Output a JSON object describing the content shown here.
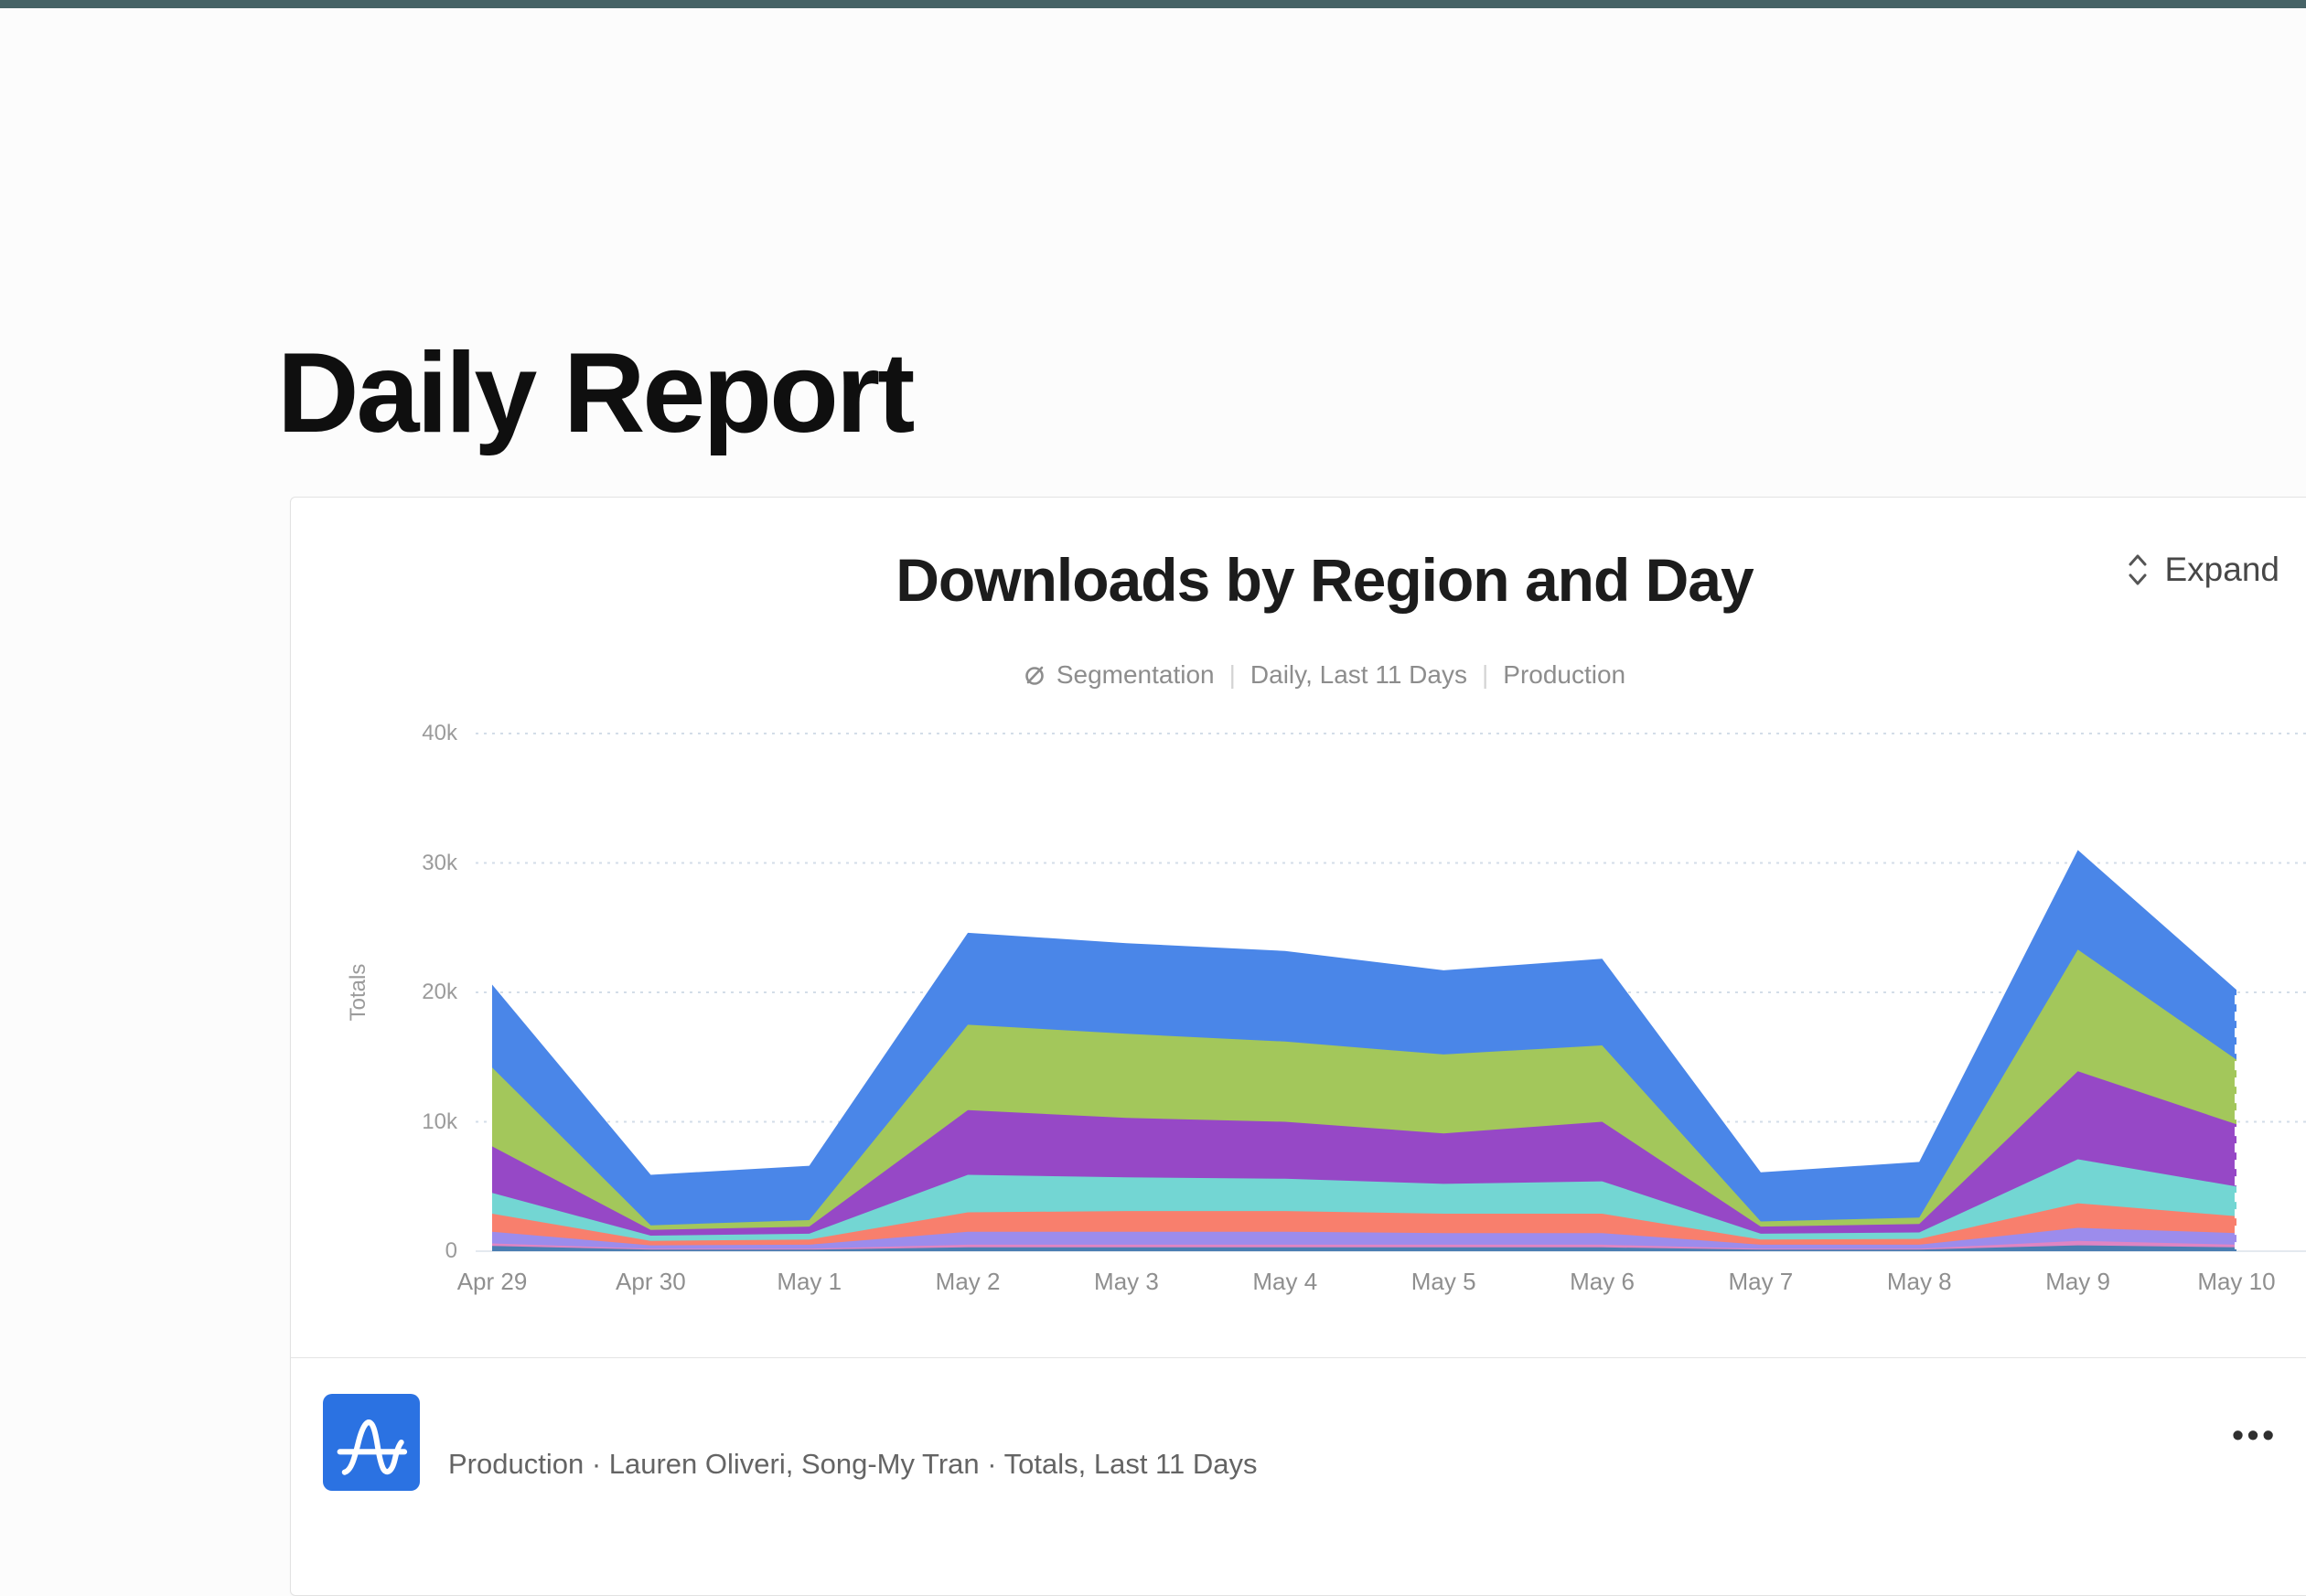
{
  "page": {
    "title": "Daily Report",
    "topbar_color": "#466366",
    "background_color": "#fcfcfc"
  },
  "card": {
    "title": "Downloads by Region and Day",
    "expand_label": "Expand",
    "subtitle": {
      "chart_type_label": "Segmentation",
      "date_range_label": "Daily, Last 11 Days",
      "environment_label": "Production",
      "separator": "|"
    }
  },
  "footer": {
    "source_text": "Production · Lauren Oliveri, Song-My Tran · Totals, Last 11 Days",
    "logo_color": "#2b72e2",
    "more_icon_glyph": "•••"
  },
  "chart_data": {
    "type": "area",
    "stacked": true,
    "title": "Downloads by Region and Day",
    "ylabel": "Totals",
    "xlabel": "",
    "ylim": [
      0,
      40000
    ],
    "grid": "dashed horizontal gridlines",
    "legend_position": "none (legend not visible in view)",
    "y_tick_labels": [
      "0",
      "10k",
      "20k",
      "30k",
      "40k"
    ],
    "y_tick_values": [
      0,
      10000,
      20000,
      30000,
      40000
    ],
    "categories": [
      "Apr 29",
      "Apr 30",
      "May 1",
      "May 2",
      "May 3",
      "May 4",
      "May 5",
      "May 6",
      "May 7",
      "May 8",
      "May 9",
      "May 10"
    ],
    "series": [
      {
        "name": "series-steel-blue",
        "color": "#4a7db2",
        "values": [
          400,
          120,
          120,
          300,
          300,
          300,
          300,
          300,
          120,
          120,
          450,
          300
        ]
      },
      {
        "name": "series-pink",
        "color": "#df85c3",
        "values": [
          200,
          80,
          80,
          200,
          200,
          200,
          200,
          200,
          80,
          80,
          350,
          200
        ]
      },
      {
        "name": "series-lavender",
        "color": "#9c8cec",
        "values": [
          900,
          250,
          300,
          1000,
          1000,
          1000,
          900,
          900,
          300,
          300,
          1000,
          900
        ]
      },
      {
        "name": "series-salmon",
        "color": "#f87f6d",
        "values": [
          1400,
          350,
          400,
          1500,
          1600,
          1600,
          1500,
          1500,
          400,
          450,
          1900,
          1300
        ]
      },
      {
        "name": "series-teal",
        "color": "#73d6d3",
        "values": [
          1600,
          400,
          450,
          2900,
          2600,
          2500,
          2300,
          2500,
          450,
          500,
          3400,
          2300
        ]
      },
      {
        "name": "series-purple",
        "color": "#9648c6",
        "values": [
          3600,
          450,
          550,
          5000,
          4600,
          4400,
          3900,
          4600,
          550,
          650,
          6800,
          4800
        ]
      },
      {
        "name": "series-green",
        "color": "#a3c75b",
        "values": [
          6100,
          350,
          500,
          6600,
          6500,
          6200,
          6100,
          5900,
          400,
          500,
          9400,
          5000
        ]
      },
      {
        "name": "series-blue",
        "color": "#4a86e8",
        "values": [
          6400,
          3900,
          4200,
          7100,
          7000,
          7000,
          6500,
          6700,
          3800,
          4300,
          7700,
          5400
        ]
      }
    ],
    "totals_by_day": [
      20600,
      5900,
      6600,
      24600,
      23800,
      23200,
      21700,
      22600,
      6100,
      6900,
      31000,
      20200
    ],
    "last_point_incomplete": true
  }
}
